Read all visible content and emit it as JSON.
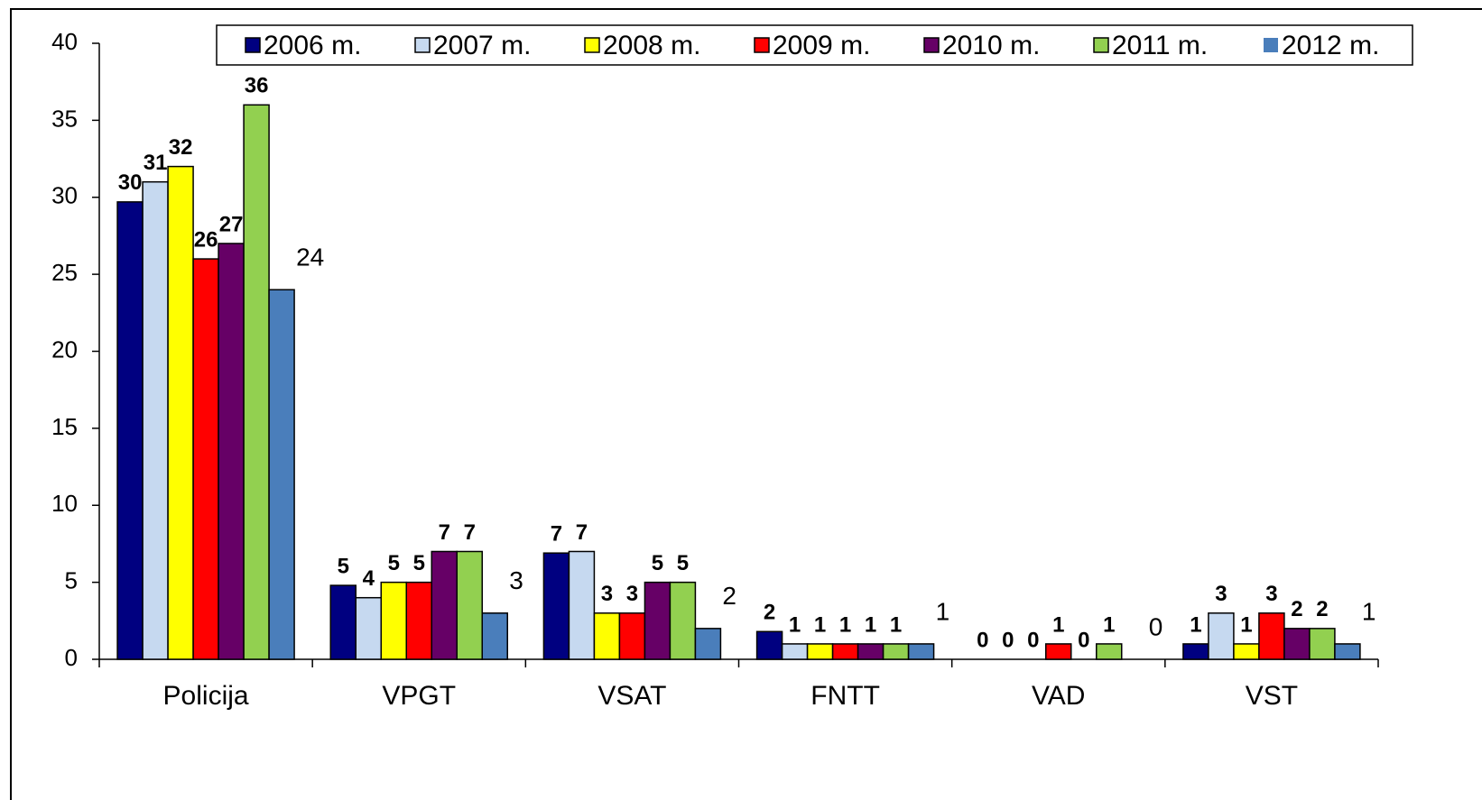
{
  "chart_data": {
    "type": "bar",
    "categories": [
      "Policija",
      "VPGT",
      "VSAT",
      "FNTT",
      "VAD",
      "VST"
    ],
    "series": [
      {
        "name": "2006 m.",
        "color": "#000080",
        "values": [
          29.7,
          4.8,
          6.9,
          1.8,
          0,
          1
        ],
        "value_labels": [
          "30",
          "5",
          "7",
          "2",
          "0",
          "1"
        ]
      },
      {
        "name": "2007 m.",
        "color": "#c6d9f0",
        "values": [
          31,
          4,
          7,
          1,
          0,
          3
        ]
      },
      {
        "name": "2008 m.",
        "color": "#ffff00",
        "values": [
          32,
          5,
          3,
          1,
          0,
          1
        ]
      },
      {
        "name": "2009 m.",
        "color": "#ff0000",
        "values": [
          26,
          5,
          3,
          1,
          1,
          3
        ]
      },
      {
        "name": "2010 m.",
        "color": "#660066",
        "values": [
          27,
          7,
          5,
          1,
          0,
          2
        ]
      },
      {
        "name": "2011 m.",
        "color": "#92d050",
        "values": [
          36,
          7,
          5,
          1,
          1,
          2
        ]
      },
      {
        "name": "2012 m.",
        "color": "#4a7ebb",
        "values": [
          24,
          3,
          2,
          1,
          0,
          1
        ]
      }
    ],
    "ylim": [
      0,
      40
    ],
    "yticks": [
      0,
      5,
      10,
      15,
      20,
      25,
      30,
      35,
      40
    ],
    "legend": "top"
  }
}
